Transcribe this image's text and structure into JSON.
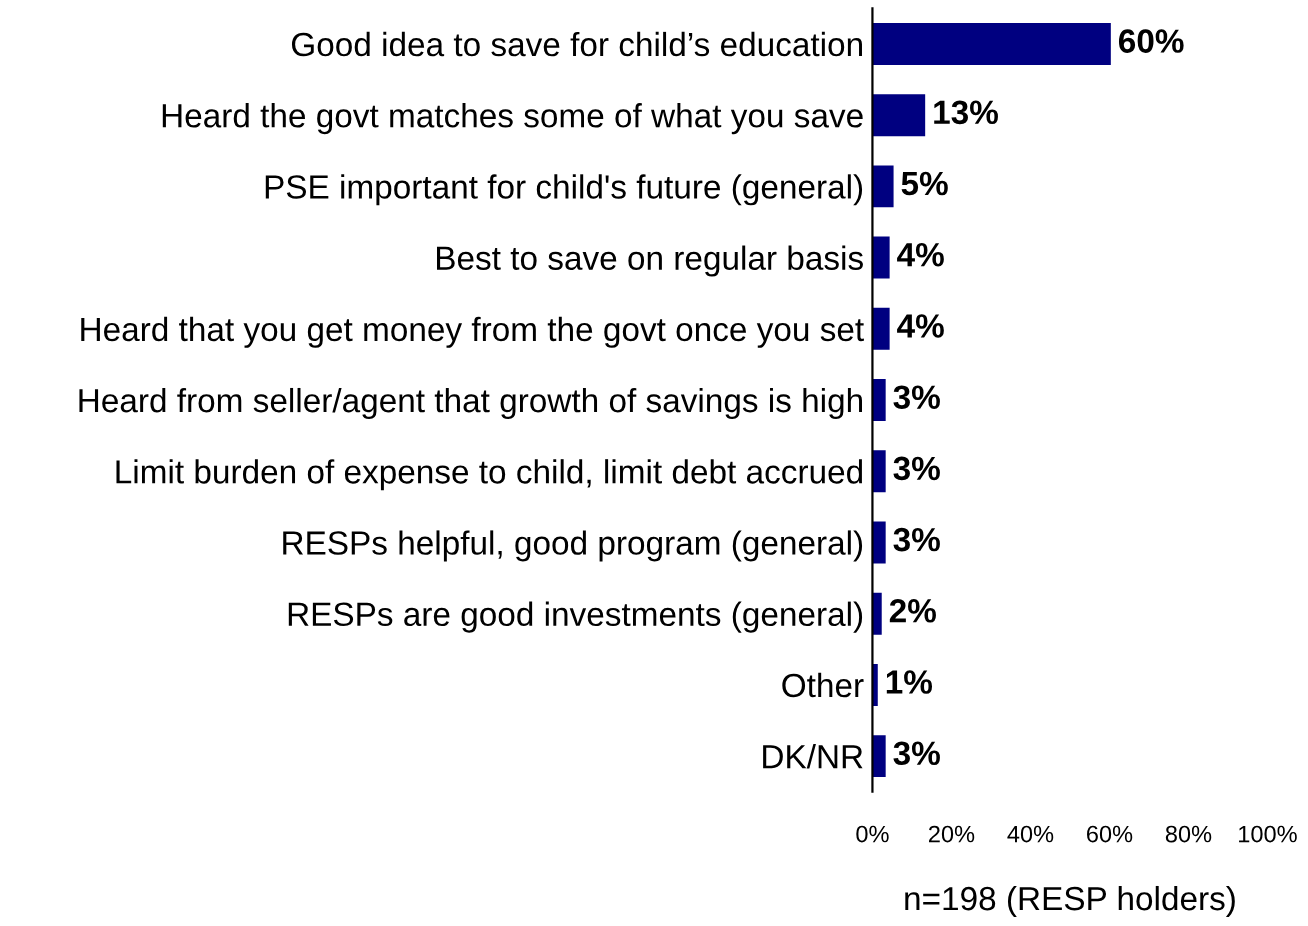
{
  "chart_data": {
    "type": "bar",
    "orientation": "horizontal",
    "xlabel": "n=198 (RESP holders)",
    "categories": [
      "Good idea to save for child’s education",
      "Heard the govt matches some of what you save",
      "PSE important for child's future (general)",
      "Best to save on regular basis",
      "Heard that you get money from the govt once you set",
      "Heard from seller/agent that growth of savings is high",
      "Limit burden of expense to child, limit debt accrued",
      "RESPs helpful, good program (general)",
      "RESPs are good investments (general)",
      "Other",
      "DK/NR"
    ],
    "values": [
      60,
      13,
      5,
      4,
      4,
      3,
      3,
      3,
      2,
      1,
      3
    ],
    "value_labels": [
      "60%",
      "13%",
      "5%",
      "4%",
      "4%",
      "3%",
      "3%",
      "3%",
      "2%",
      "1%",
      "3%"
    ],
    "color": "#000080",
    "xlim": [
      0,
      100
    ],
    "xticks": [
      {
        "value": 0,
        "label": "0%"
      },
      {
        "value": 20,
        "label": "20%"
      },
      {
        "value": 40,
        "label": "40%"
      },
      {
        "value": 60,
        "label": "60%"
      },
      {
        "value": 80,
        "label": "80%"
      },
      {
        "value": 100,
        "label": "100%"
      }
    ],
    "grid": false,
    "legend": false
  }
}
